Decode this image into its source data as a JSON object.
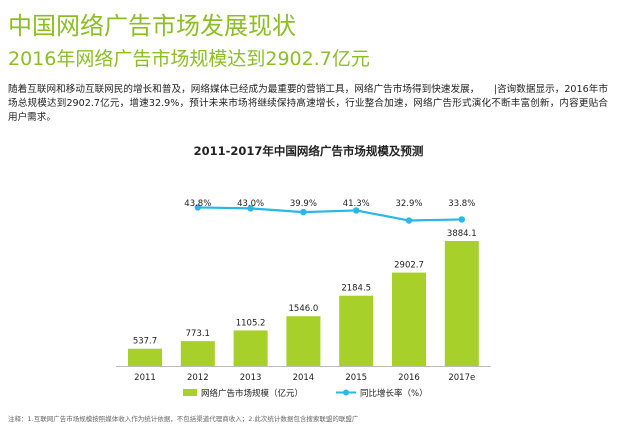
{
  "header": {
    "title": "中国网络广告市场发展现状",
    "subtitle": "2016年网络广告市场规模达到2902.7亿元"
  },
  "body": {
    "paragraph": "随着互联网和移动互联网民的增长和普及，网络媒体已经成为最重要的营销工具，网络广告市场得到快速发展，　　|咨询数据显示，2016年市场总规模达到2902.7亿元，增速32.9%，预计未来市场将继续保持高速增长，行业整合加速，网络广告形式演化不断丰富创新，内容更贴合用户需求。"
  },
  "footer": {
    "note": "注释：1.互联网广告市场规模按照媒体收入作为统计依据，不包括渠道代理商收入；2.此次统计数据包含搜索联盟的联盟广"
  },
  "colors": {
    "bar": "#a8d02a",
    "line": "#29b6e8",
    "title_green": "#8cbf26"
  },
  "chart_data": {
    "type": "bar",
    "title": "2011-2017年中国网络广告市场规模及预测",
    "categories": [
      "2011",
      "2012",
      "2013",
      "2014",
      "2015",
      "2016",
      "2017e"
    ],
    "series": [
      {
        "name": "网络广告市场规模（亿元）",
        "type": "bar",
        "values": [
          537.7,
          773.1,
          1105.2,
          1546.0,
          2184.5,
          2902.7,
          3884.1
        ],
        "labels": [
          "537.7",
          "773.1",
          "1105.2",
          "1546.0",
          "2184.5",
          "2902.7",
          "3884.1"
        ]
      },
      {
        "name": "同比增长率（%）",
        "type": "line",
        "values": [
          null,
          43.8,
          43.0,
          39.9,
          41.3,
          32.9,
          33.8
        ],
        "labels": [
          "",
          "43.8%",
          "43.0%",
          "39.9%",
          "41.3%",
          "32.9%",
          "33.8%"
        ]
      }
    ],
    "legend_position": "bottom",
    "grid": false
  }
}
